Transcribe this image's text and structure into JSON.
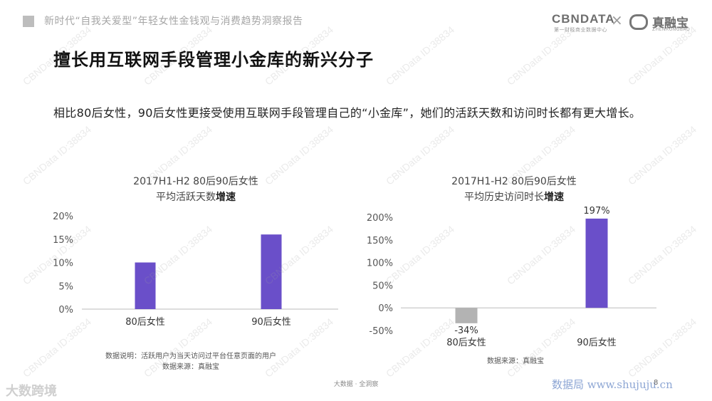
{
  "header": {
    "report_title": "新时代“自我关爱型”年轻女性金钱观与消费趋势洞察报告",
    "logo_cbn": "CBNDATA",
    "logo_cbn_sub": "第一财经商业数据中心",
    "logo_separator": "×",
    "logo_partner": "真融宝",
    "logo_partner_sub": "ZHENRONGBAO"
  },
  "main_title": "擅长用互联网手段管理小金库的新兴分子",
  "subtitle": "相比80后女性，90后女性更接受使用互联网手段管理自己的“小金库”，她们的活跃天数和访问时长都有更大增长。",
  "colors": {
    "bar_main": "#6a4fc9",
    "bar_negative": "#b3b3b3",
    "axis": "#bbbbbb"
  },
  "chart_data": [
    {
      "type": "bar",
      "title_line1": "2017H1-H2 80后90后女性",
      "title_line2_prefix": "平均活跃天数",
      "title_line2_bold": "增速",
      "categories": [
        "80后女性",
        "90后女性"
      ],
      "values": [
        10,
        16
      ],
      "ylim": [
        0,
        20
      ],
      "yticks": [
        "20%",
        "15%",
        "10%",
        "5%",
        "0%"
      ],
      "data_labels": [],
      "note_line1": "数据说明：活跃用户为当天访问过平台任意页面的用户",
      "note_line2": "数据来源：真融宝"
    },
    {
      "type": "bar",
      "title_line1": "2017H1-H2 80后90后女性",
      "title_line2_prefix": "平均历史访问时长",
      "title_line2_bold": "增速",
      "categories": [
        "80后女性",
        "90后女性"
      ],
      "values": [
        -34,
        197
      ],
      "ylim": [
        -50,
        200
      ],
      "yticks": [
        "200%",
        "150%",
        "100%",
        "50%",
        "0%",
        "-50%"
      ],
      "data_labels": [
        "-34%",
        "197%"
      ],
      "note_line1": "数据来源：真融宝"
    }
  ],
  "footer": {
    "center": "大数据 · 全洞察",
    "left_brand": "大数跨境",
    "right_site": "数据局 www.shujuju.cn",
    "page_number": "8"
  },
  "watermark": "CBNData ID:38834"
}
